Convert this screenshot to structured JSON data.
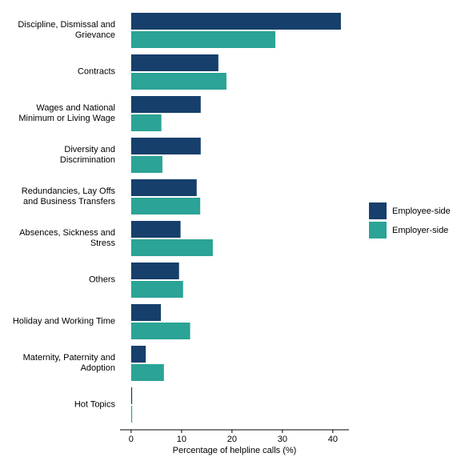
{
  "chart_data": {
    "type": "barh",
    "categories": [
      "Discipline, Dismissal and\nGrievance",
      "Contracts",
      "Wages and National\nMinimum or Living Wage",
      "Diversity and\nDiscrimination",
      "Redundancies, Lay Offs\nand Business Transfers",
      "Absences, Sickness and\nStress",
      "Others",
      "Holiday and Working Time",
      "Maternity, Paternity and\nAdoption",
      "Hot Topics"
    ],
    "series": [
      {
        "name": "Employee-side",
        "color": "#163f6b",
        "values": [
          41.6,
          17.3,
          13.8,
          13.8,
          13.0,
          9.8,
          9.5,
          5.9,
          2.9,
          0.2
        ]
      },
      {
        "name": "Employer-side",
        "color": "#2ba396",
        "values": [
          28.6,
          18.9,
          6.0,
          6.2,
          13.7,
          16.2,
          10.3,
          11.7,
          6.5,
          0.2
        ]
      }
    ],
    "x_label": "Percentage of helpline calls (%)",
    "xlim": [
      -2.2,
      43.2
    ],
    "xticks": [
      0,
      10,
      20,
      30,
      40
    ],
    "legend": "right"
  }
}
